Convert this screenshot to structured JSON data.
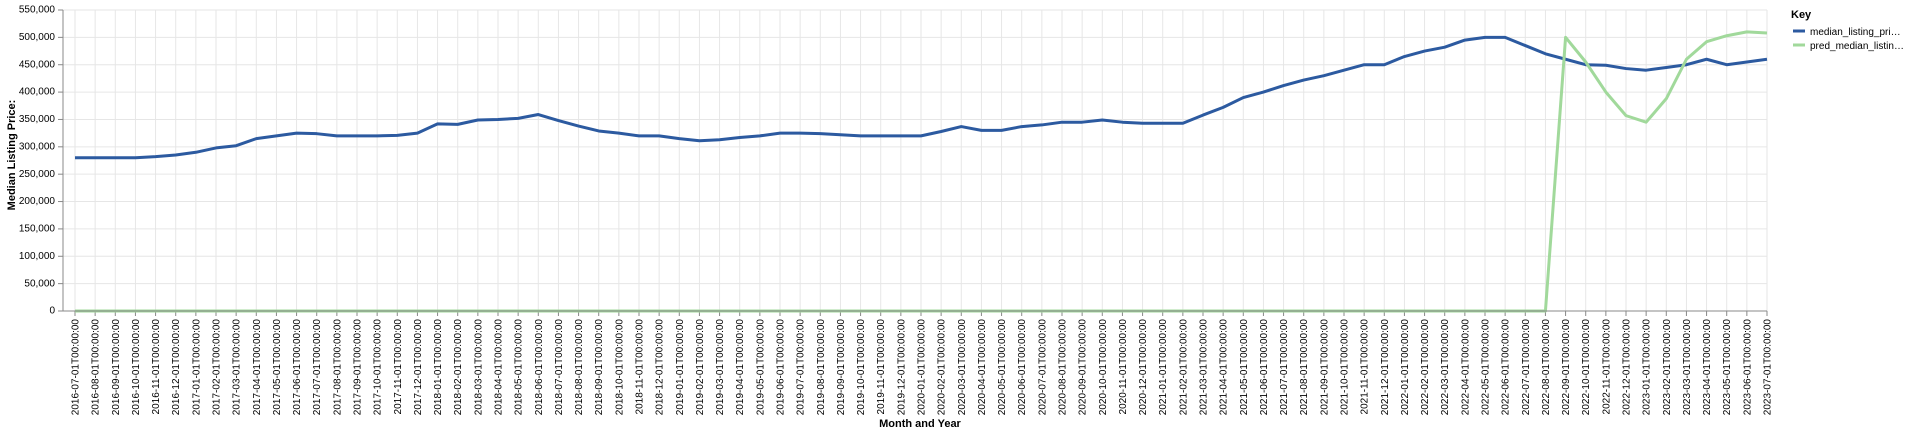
{
  "chart_data": {
    "type": "line",
    "title": "",
    "xlabel": "Month and Year",
    "ylabel": "Median Listing Price:",
    "ylim": [
      0,
      550000
    ],
    "yticks": [
      0,
      50000,
      100000,
      150000,
      200000,
      250000,
      300000,
      350000,
      400000,
      450000,
      500000,
      550000
    ],
    "grid": true,
    "legend": {
      "title": "Key",
      "placement": "right"
    },
    "x": [
      "2016-07-01T00:00:00",
      "2016-08-01T00:00:00",
      "2016-09-01T00:00:00",
      "2016-10-01T00:00:00",
      "2016-11-01T00:00:00",
      "2016-12-01T00:00:00",
      "2017-01-01T00:00:00",
      "2017-02-01T00:00:00",
      "2017-03-01T00:00:00",
      "2017-04-01T00:00:00",
      "2017-05-01T00:00:00",
      "2017-06-01T00:00:00",
      "2017-07-01T00:00:00",
      "2017-08-01T00:00:00",
      "2017-09-01T00:00:00",
      "2017-10-01T00:00:00",
      "2017-11-01T00:00:00",
      "2017-12-01T00:00:00",
      "2018-01-01T00:00:00",
      "2018-02-01T00:00:00",
      "2018-03-01T00:00:00",
      "2018-04-01T00:00:00",
      "2018-05-01T00:00:00",
      "2018-06-01T00:00:00",
      "2018-07-01T00:00:00",
      "2018-08-01T00:00:00",
      "2018-09-01T00:00:00",
      "2018-10-01T00:00:00",
      "2018-11-01T00:00:00",
      "2018-12-01T00:00:00",
      "2019-01-01T00:00:00",
      "2019-02-01T00:00:00",
      "2019-03-01T00:00:00",
      "2019-04-01T00:00:00",
      "2019-05-01T00:00:00",
      "2019-06-01T00:00:00",
      "2019-07-01T00:00:00",
      "2019-08-01T00:00:00",
      "2019-09-01T00:00:00",
      "2019-10-01T00:00:00",
      "2019-11-01T00:00:00",
      "2019-12-01T00:00:00",
      "2020-01-01T00:00:00",
      "2020-02-01T00:00:00",
      "2020-03-01T00:00:00",
      "2020-04-01T00:00:00",
      "2020-05-01T00:00:00",
      "2020-06-01T00:00:00",
      "2020-07-01T00:00:00",
      "2020-08-01T00:00:00",
      "2020-09-01T00:00:00",
      "2020-10-01T00:00:00",
      "2020-11-01T00:00:00",
      "2020-12-01T00:00:00",
      "2021-01-01T00:00:00",
      "2021-02-01T00:00:00",
      "2021-03-01T00:00:00",
      "2021-04-01T00:00:00",
      "2021-05-01T00:00:00",
      "2021-06-01T00:00:00",
      "2021-07-01T00:00:00",
      "2021-08-01T00:00:00",
      "2021-09-01T00:00:00",
      "2021-10-01T00:00:00",
      "2021-11-01T00:00:00",
      "2021-12-01T00:00:00",
      "2022-01-01T00:00:00",
      "2022-02-01T00:00:00",
      "2022-03-01T00:00:00",
      "2022-04-01T00:00:00",
      "2022-05-01T00:00:00",
      "2022-06-01T00:00:00",
      "2022-07-01T00:00:00",
      "2022-08-01T00:00:00",
      "2022-09-01T00:00:00",
      "2022-10-01T00:00:00",
      "2022-11-01T00:00:00",
      "2022-12-01T00:00:00",
      "2023-01-01T00:00:00",
      "2023-02-01T00:00:00",
      "2023-03-01T00:00:00",
      "2023-04-01T00:00:00",
      "2023-05-01T00:00:00",
      "2023-06-01T00:00:00",
      "2023-07-01T00:00:00"
    ],
    "series": [
      {
        "name": "median_listing_pri…",
        "color": "#2c5aa0",
        "values": [
          280000,
          280000,
          280000,
          280000,
          282000,
          285000,
          290000,
          298000,
          302000,
          315000,
          320000,
          325000,
          324000,
          320000,
          320000,
          320000,
          321000,
          325000,
          342000,
          341000,
          349000,
          350000,
          352000,
          359000,
          348000,
          338000,
          329000,
          325000,
          320000,
          320000,
          315000,
          311000,
          313000,
          317000,
          320000,
          325000,
          325000,
          324000,
          322000,
          320000,
          320000,
          320000,
          320000,
          328000,
          337000,
          330000,
          330000,
          337000,
          340000,
          345000,
          345000,
          349000,
          345000,
          343000,
          343000,
          343000,
          358000,
          372000,
          390000,
          400000,
          412000,
          422000,
          430000,
          440000,
          450000,
          450000,
          465000,
          475000,
          482000,
          495000,
          500000,
          500000,
          485000,
          470000,
          460000,
          450000,
          449000,
          443000,
          440000,
          445000,
          450000,
          460000,
          450000,
          455000,
          460000
        ]
      },
      {
        "name": "pred_median_listin…",
        "color": "#a1d99b",
        "values": [
          0,
          0,
          0,
          0,
          0,
          0,
          0,
          0,
          0,
          0,
          0,
          0,
          0,
          0,
          0,
          0,
          0,
          0,
          0,
          0,
          0,
          0,
          0,
          0,
          0,
          0,
          0,
          0,
          0,
          0,
          0,
          0,
          0,
          0,
          0,
          0,
          0,
          0,
          0,
          0,
          0,
          0,
          0,
          0,
          0,
          0,
          0,
          0,
          0,
          0,
          0,
          0,
          0,
          0,
          0,
          0,
          0,
          0,
          0,
          0,
          0,
          0,
          0,
          0,
          0,
          0,
          0,
          0,
          0,
          0,
          0,
          0,
          0,
          0,
          500000,
          455000,
          400000,
          357000,
          345000,
          388000,
          460000,
          492000,
          503000,
          510000,
          508000
        ]
      }
    ]
  }
}
